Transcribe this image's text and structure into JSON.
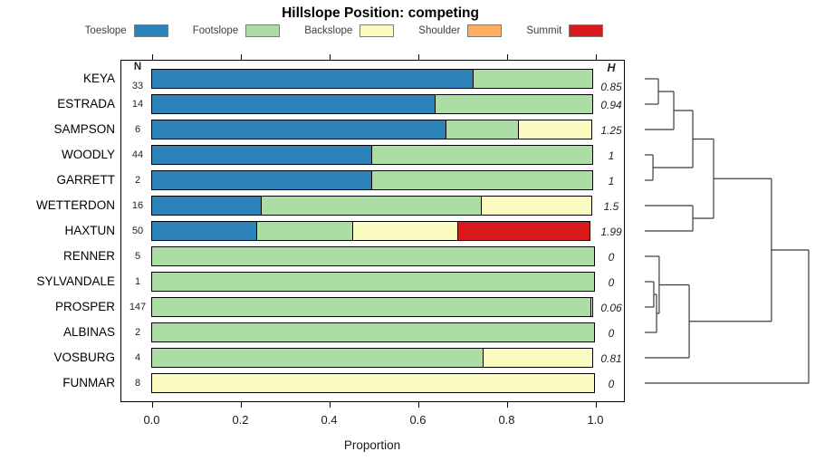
{
  "title": "Hillslope Position: competing",
  "legend": {
    "items": [
      {
        "label": "Toeslope",
        "color": "#2B83BA"
      },
      {
        "label": "Footslope",
        "color": "#ABDDA4"
      },
      {
        "label": "Backslope",
        "color": "#FBFBC2"
      },
      {
        "label": "Shoulder",
        "color": "#FDAE61"
      },
      {
        "label": "Summit",
        "color": "#D7191C"
      }
    ]
  },
  "columns": {
    "n_header": "N",
    "h_header": "H"
  },
  "axis": {
    "label": "Proportion",
    "tick_labels": [
      "0.0",
      "0.2",
      "0.4",
      "0.6",
      "0.8",
      "1.0"
    ]
  },
  "chart_data": {
    "type": "bar",
    "orientation": "horizontal-stacked",
    "title": "Hillslope Position: competing",
    "xlabel": "Proportion",
    "xlim": [
      0,
      1
    ],
    "classes": [
      "Toeslope",
      "Footslope",
      "Backslope",
      "Shoulder",
      "Summit"
    ],
    "rows": [
      {
        "name": "KEYA",
        "n": "33",
        "h": "0.85",
        "segments": [
          {
            "class": "Toeslope",
            "p": 0.727
          },
          {
            "class": "Footslope",
            "p": 0.273
          }
        ]
      },
      {
        "name": "ESTRADA",
        "n": "14",
        "h": "0.94",
        "segments": [
          {
            "class": "Toeslope",
            "p": 0.643
          },
          {
            "class": "Footslope",
            "p": 0.357
          }
        ]
      },
      {
        "name": "SAMPSON",
        "n": "6",
        "h": "1.25",
        "segments": [
          {
            "class": "Toeslope",
            "p": 0.666
          },
          {
            "class": "Footslope",
            "p": 0.167
          },
          {
            "class": "Backslope",
            "p": 0.167
          }
        ]
      },
      {
        "name": "WOODLY",
        "n": "44",
        "h": "1",
        "segments": [
          {
            "class": "Toeslope",
            "p": 0.5
          },
          {
            "class": "Footslope",
            "p": 0.5
          }
        ]
      },
      {
        "name": "GARRETT",
        "n": "2",
        "h": "1",
        "segments": [
          {
            "class": "Toeslope",
            "p": 0.5
          },
          {
            "class": "Footslope",
            "p": 0.5
          }
        ]
      },
      {
        "name": "WETTERDON",
        "n": "16",
        "h": "1.5",
        "segments": [
          {
            "class": "Toeslope",
            "p": 0.25
          },
          {
            "class": "Footslope",
            "p": 0.5
          },
          {
            "class": "Backslope",
            "p": 0.25
          }
        ]
      },
      {
        "name": "HAXTUN",
        "n": "50",
        "h": "1.99",
        "segments": [
          {
            "class": "Toeslope",
            "p": 0.24
          },
          {
            "class": "Footslope",
            "p": 0.22
          },
          {
            "class": "Backslope",
            "p": 0.24
          },
          {
            "class": "Summit",
            "p": 0.3
          }
        ]
      },
      {
        "name": "RENNER",
        "n": "5",
        "h": "0",
        "segments": [
          {
            "class": "Footslope",
            "p": 1.0
          }
        ]
      },
      {
        "name": "SYLVANDALE",
        "n": "1",
        "h": "0",
        "segments": [
          {
            "class": "Footslope",
            "p": 1.0
          }
        ]
      },
      {
        "name": "PROSPER",
        "n": "147",
        "h": "0.06",
        "segments": [
          {
            "class": "Footslope",
            "p": 0.993
          },
          {
            "class": "Backslope",
            "p": 0.007
          }
        ]
      },
      {
        "name": "ALBINAS",
        "n": "2",
        "h": "0",
        "segments": [
          {
            "class": "Footslope",
            "p": 1.0
          }
        ]
      },
      {
        "name": "VOSBURG",
        "n": "4",
        "h": "0.81",
        "segments": [
          {
            "class": "Footslope",
            "p": 0.75
          },
          {
            "class": "Backslope",
            "p": 0.25
          }
        ]
      },
      {
        "name": "FUNMAR",
        "n": "8",
        "h": "0",
        "segments": [
          {
            "class": "Backslope",
            "p": 1.0
          }
        ]
      }
    ],
    "dendrogram": {
      "legend_position": "right",
      "merges": [
        {
          "a": "KEYA",
          "b": "ESTRADA",
          "h": 0.083
        },
        {
          "a": "#0",
          "b": "SAMPSON",
          "h": 0.177
        },
        {
          "a": "WOODLY",
          "b": "GARRETT",
          "h": 0.05
        },
        {
          "a": "#1",
          "b": "#2",
          "h": 0.293
        },
        {
          "a": "WETTERDON",
          "b": "HAXTUN",
          "h": 0.293
        },
        {
          "a": "#3",
          "b": "#4",
          "h": 0.42
        },
        {
          "a": "SYLVANDALE",
          "b": "PROSPER",
          "h": 0.055
        },
        {
          "a": "#6",
          "b": "ALBINAS",
          "h": 0.072
        },
        {
          "a": "RENNER",
          "b": "#7",
          "h": 0.088
        },
        {
          "a": "#8",
          "b": "VOSBURG",
          "h": 0.271
        },
        {
          "a": "#5",
          "b": "#9",
          "h": 0.773
        },
        {
          "a": "#10",
          "b": "FUNMAR",
          "h": 1.0
        }
      ]
    }
  }
}
